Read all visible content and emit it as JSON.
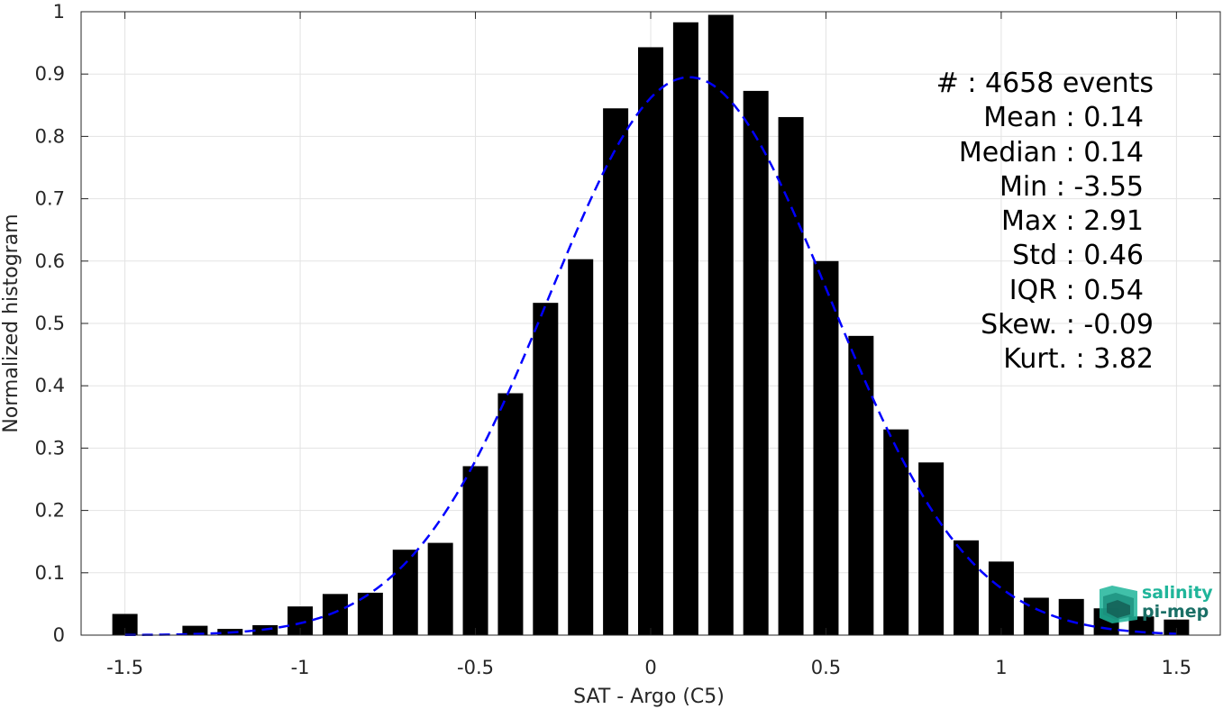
{
  "chart_data": {
    "type": "bar",
    "xlabel": "SAT - Argo (C5)",
    "ylabel": "Normalized histogram",
    "xlim": [
      -1.625,
      1.625
    ],
    "ylim": [
      0,
      1
    ],
    "grid": true,
    "xticks": [
      "-1.5",
      "-1",
      "-0.5",
      "0",
      "0.5",
      "1",
      "1.5"
    ],
    "xtick_values": [
      -1.5,
      -1,
      -0.5,
      0,
      0.5,
      1,
      1.5
    ],
    "yticks": [
      "0",
      "0.1",
      "0.2",
      "0.3",
      "0.4",
      "0.5",
      "0.6",
      "0.7",
      "0.8",
      "0.9",
      "1"
    ],
    "ytick_values": [
      0,
      0.1,
      0.2,
      0.3,
      0.4,
      0.5,
      0.6,
      0.7,
      0.8,
      0.9,
      1
    ],
    "bin_width": 0.1,
    "bar_fraction": 0.72,
    "x": [
      -1.5,
      -1.4,
      -1.3,
      -1.2,
      -1.1,
      -1.0,
      -0.9,
      -0.8,
      -0.7,
      -0.6,
      -0.5,
      -0.4,
      -0.3,
      -0.2,
      -0.1,
      0.0,
      0.1,
      0.2,
      0.3,
      0.4,
      0.5,
      0.6,
      0.7,
      0.8,
      0.9,
      1.0,
      1.1,
      1.2,
      1.3,
      1.4,
      1.5
    ],
    "values": [
      0.034,
      0.0,
      0.015,
      0.01,
      0.016,
      0.046,
      0.066,
      0.068,
      0.137,
      0.148,
      0.271,
      0.388,
      0.533,
      0.603,
      0.845,
      0.943,
      0.983,
      0.995,
      0.873,
      0.831,
      0.6,
      0.48,
      0.33,
      0.277,
      0.152,
      0.118,
      0.06,
      0.058,
      0.043,
      0.03,
      0.025
    ],
    "bar_color": "#000000",
    "fit_curve": {
      "style": "dashed",
      "color": "#0000ff",
      "mean": 0.11,
      "std": 0.4,
      "peak": 0.895,
      "x_range": [
        -1.5,
        1.5
      ]
    },
    "stats": [
      {
        "label": "#  : 4658 events"
      },
      {
        "label": "Mean : 0.14"
      },
      {
        "label": "Median : 0.14"
      },
      {
        "label": "Min : -3.55"
      },
      {
        "label": "Max : 2.91"
      },
      {
        "label": "Std : 0.46"
      },
      {
        "label": "IQR : 0.54"
      },
      {
        "label": "Skew. : -0.09"
      },
      {
        "label": "Kurt. : 3.82"
      }
    ]
  },
  "logo": {
    "line1": "salinity",
    "line2": "pi-mep",
    "color_primary": "#1fb59a",
    "color_secondary": "#1a6f66"
  }
}
